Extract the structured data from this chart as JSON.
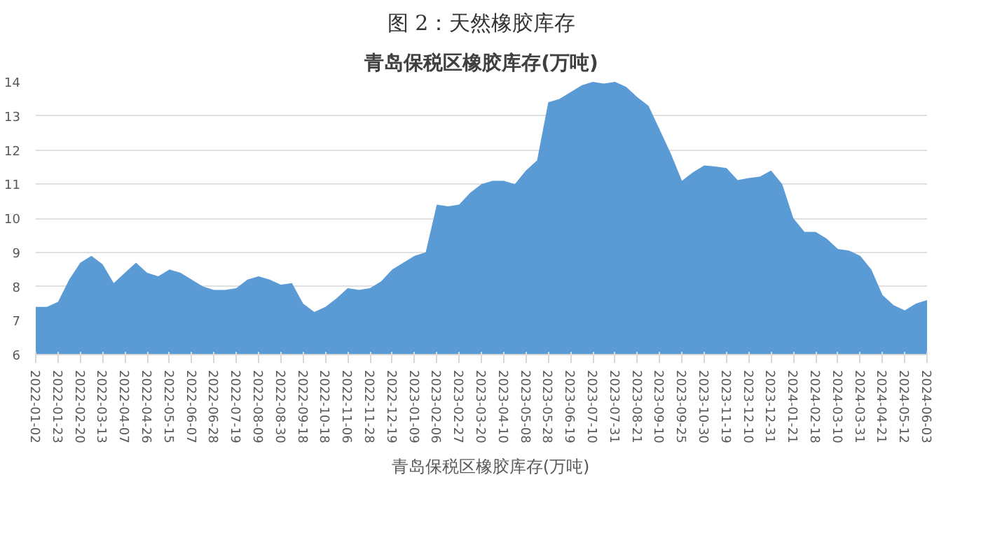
{
  "chart_data": {
    "type": "area",
    "title": "青岛保税区橡胶库存(万吨)",
    "subtitle": "图 2：天然橡胶库存",
    "categories": [
      "2022-01-02",
      null,
      "2022-01-23",
      null,
      "2022-02-20",
      null,
      "2022-03-13",
      null,
      "2022-04-07",
      null,
      "2022-04-26",
      null,
      "2022-05-15",
      null,
      "2022-06-07",
      null,
      "2022-06-28",
      null,
      "2022-07-19",
      null,
      "2022-08-09",
      null,
      "2022-08-30",
      null,
      "2022-09-18",
      null,
      "2022-10-18",
      null,
      "2022-11-06",
      null,
      "2022-11-28",
      null,
      "2022-12-19",
      null,
      "2023-01-09",
      null,
      "2023-02-06",
      null,
      "2023-02-27",
      null,
      "2023-03-20",
      null,
      "2023-04-10",
      null,
      "2023-05-08",
      null,
      "2023-05-28",
      null,
      "2023-06-19",
      null,
      "2023-07-10",
      null,
      "2023-07-31",
      null,
      "2023-08-21",
      null,
      "2023-09-10",
      null,
      "2023-09-25",
      null,
      "2023-10-30",
      null,
      "2023-11-19",
      null,
      "2023-12-10",
      null,
      "2023-12-31",
      null,
      "2024-01-21",
      null,
      "2024-02-18",
      null,
      "2024-03-10",
      null,
      "2024-03-31",
      null,
      "2024-04-21",
      null,
      "2024-05-12",
      null,
      "2024-06-03"
    ],
    "series": [
      {
        "name": "青岛保税区橡胶库存(万吨)",
        "color": "#5b9bd5",
        "values": [
          7.4,
          7.4,
          7.55,
          8.2,
          8.7,
          8.9,
          8.65,
          8.1,
          8.4,
          8.7,
          8.4,
          8.3,
          8.5,
          8.4,
          8.2,
          8.0,
          7.9,
          7.9,
          7.95,
          8.2,
          8.3,
          8.2,
          8.05,
          8.1,
          7.5,
          7.25,
          7.4,
          7.65,
          7.95,
          7.9,
          7.95,
          8.15,
          8.5,
          8.7,
          8.9,
          9.0,
          10.4,
          10.35,
          10.4,
          10.75,
          11.0,
          11.1,
          11.1,
          11.0,
          11.4,
          11.7,
          13.4,
          13.5,
          13.7,
          13.9,
          14.0,
          13.95,
          14.0,
          13.85,
          13.55,
          13.3,
          12.6,
          11.9,
          11.1,
          11.35,
          11.55,
          11.52,
          11.47,
          11.12,
          11.18,
          11.22,
          11.4,
          11.0,
          10.0,
          9.6,
          9.6,
          9.4,
          9.1,
          9.05,
          8.9,
          8.5,
          7.75,
          7.45,
          7.3,
          7.5,
          7.6
        ]
      }
    ],
    "ylim": [
      6,
      14
    ],
    "yticks": [
      6,
      7,
      8,
      9,
      10,
      11,
      12,
      13,
      14
    ],
    "grid": "y",
    "legend": "bottom"
  }
}
